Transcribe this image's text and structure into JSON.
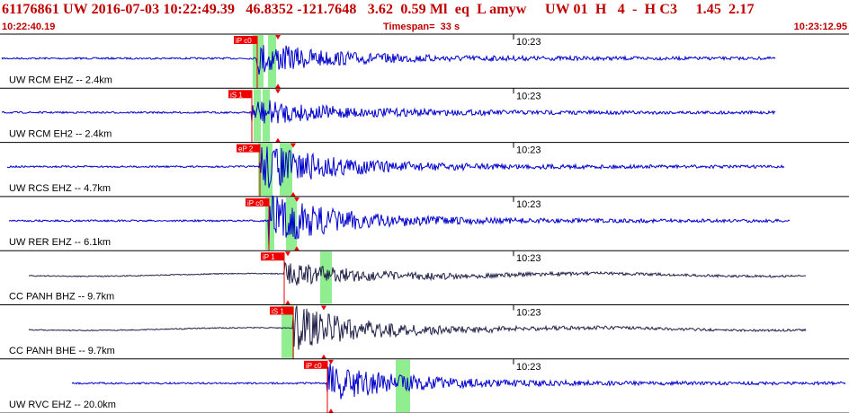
{
  "header": {
    "title": "61176861 UW 2016-07-03 10:22:49.39   46.8352 -121.7648   3.62  0.59 Ml  eq  L amyw     UW 01  H   4  -  H C3     1.45  2.17",
    "start_time": "10:22:40.19",
    "timespan": "Timespan=  33 s",
    "end_time": "10:23:12.95"
  },
  "colors": {
    "header_text": "#c00000",
    "trace_blue": "#0000cc",
    "trace_dark": "#22224a",
    "pick_red": "#ee0000",
    "window_green": "#90ee90",
    "divider": "#000000"
  },
  "traces": [
    {
      "label": "UW RCM EHZ -- 2.4km",
      "clock": "10:23",
      "pick": "iP c0",
      "style": "blue",
      "onset": 0.28
    },
    {
      "label": "UW RCM EH2 -- 2.4km",
      "clock": "10:23",
      "pick": "iS 1",
      "style": "blue",
      "onset": 0.32
    },
    {
      "label": "UW RCS EHZ -- 4.7km",
      "clock": "10:23",
      "pick": "eP 2",
      "style": "blue",
      "onset": 0.33
    },
    {
      "label": "UW RER EHZ -- 6.1km",
      "clock": "10:23",
      "pick": "iP c0",
      "style": "blue",
      "onset": 0.31
    },
    {
      "label": "CC PANH BHZ -- 9.7km",
      "clock": "10:23",
      "pick": "iP 1",
      "style": "dark",
      "onset": 0.37
    },
    {
      "label": "CC PANH BHE -- 9.7km",
      "clock": "10:23",
      "pick": "iS 1",
      "style": "dark",
      "onset": 0.38
    },
    {
      "label": "UW RVC EHZ -- 20.0km",
      "clock": "10:23",
      "pick": "iP c0",
      "style": "blue",
      "onset": 0.39
    }
  ]
}
